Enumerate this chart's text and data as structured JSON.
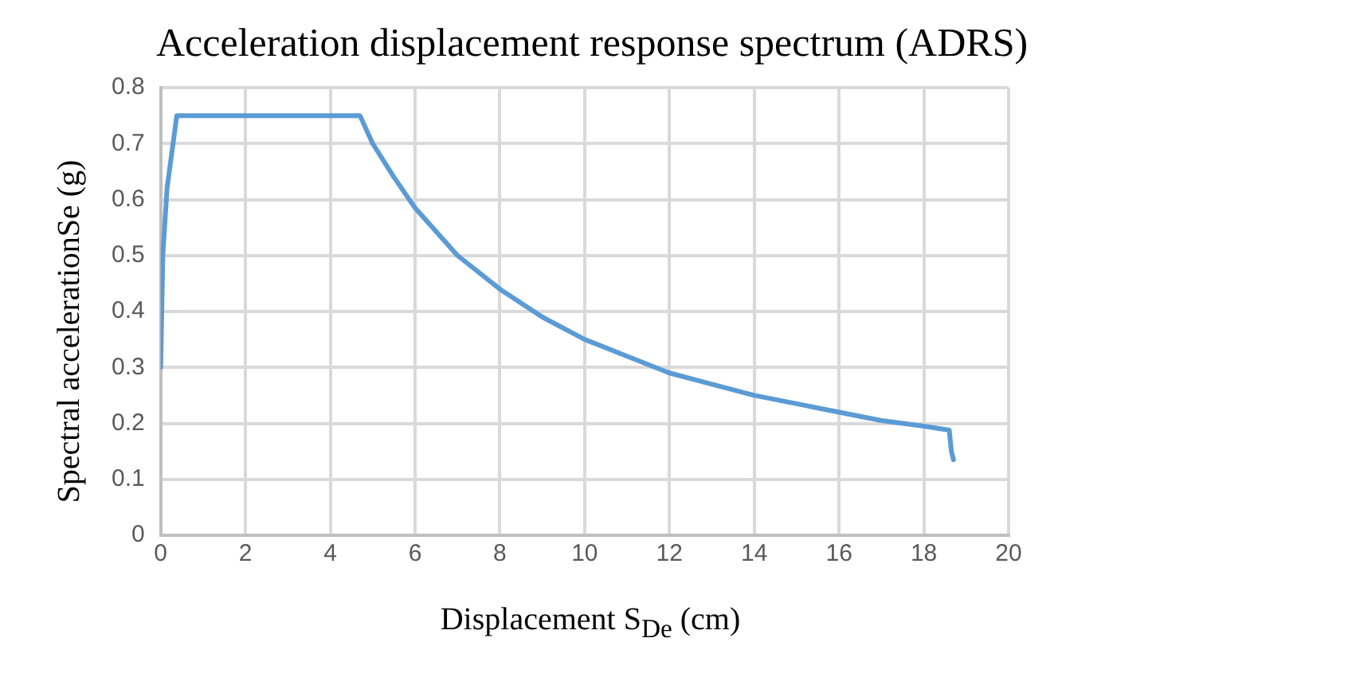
{
  "chart_data": {
    "type": "line",
    "title": "Acceleration displacement response spectrum (ADRS)",
    "xlabel": "Displacement S$_{De}$ (cm)",
    "ylabel": "Spectral accelerationSe (g)",
    "series": [
      {
        "color": "#5b9bd5",
        "x": [
          0,
          0.05,
          0.15,
          0.38,
          4.7,
          5,
          5.5,
          6,
          7,
          8,
          9,
          10,
          11,
          12,
          13,
          14,
          15,
          16,
          17,
          18,
          18.6,
          18.65,
          18.7
        ],
        "values": [
          0.3,
          0.5,
          0.62,
          0.75,
          0.75,
          0.7,
          0.64,
          0.585,
          0.5,
          0.44,
          0.39,
          0.35,
          0.32,
          0.29,
          0.27,
          0.25,
          0.235,
          0.22,
          0.205,
          0.195,
          0.188,
          0.15,
          0.135
        ]
      }
    ],
    "xlim": [
      0,
      20
    ],
    "xticks": [
      0,
      2,
      4,
      6,
      8,
      10,
      12,
      14,
      16,
      18,
      20
    ],
    "ylim": [
      0,
      0.8
    ],
    "yticks": [
      0,
      0.1,
      0.2,
      0.3,
      0.4,
      0.5,
      0.6,
      0.7,
      0.8
    ],
    "grid": true,
    "legend": false,
    "marker": "none",
    "line_style": "solid"
  }
}
